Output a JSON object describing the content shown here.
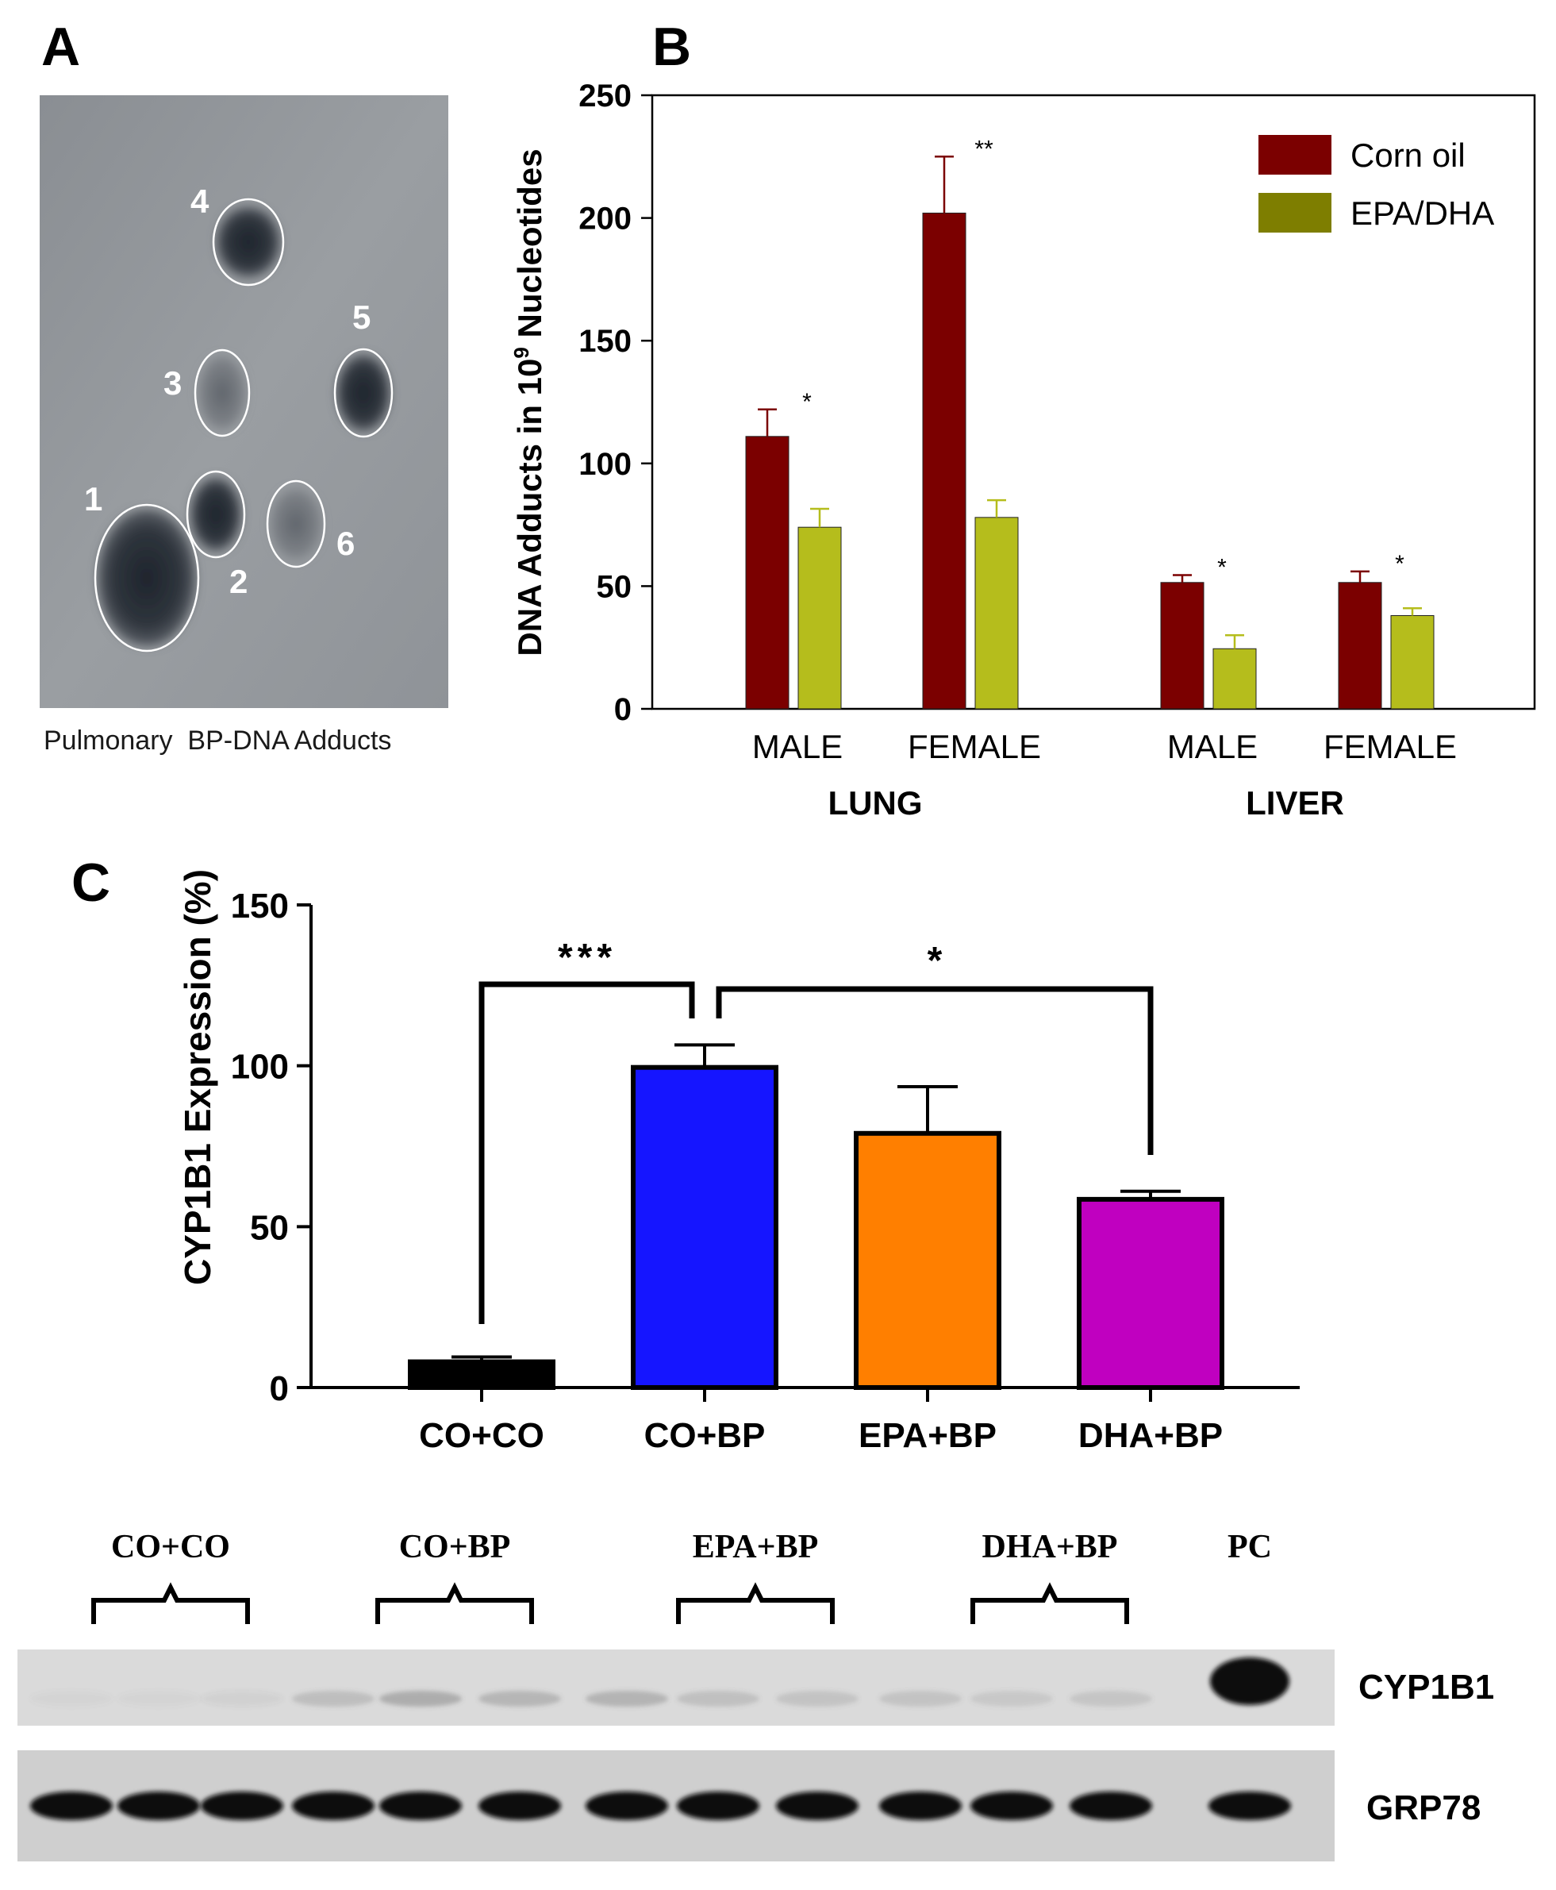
{
  "panels": {
    "a": {
      "letter": "A",
      "caption": "Pulmonary  BP-DNA Adducts",
      "spots": [
        "1",
        "2",
        "3",
        "4",
        "5",
        "6"
      ]
    },
    "b": {
      "letter": "B"
    },
    "c": {
      "letter": "C"
    },
    "blot": {
      "groups": [
        "CO+CO",
        "CO+BP",
        "EPA+BP",
        "DHA+BP"
      ],
      "pc_label": "PC",
      "rows": [
        "CYP1B1",
        "GRP78"
      ]
    }
  },
  "colors": {
    "corn_oil": "#7b0000",
    "epa_dha": "#b5bd1c",
    "legend_epa_dha": "#7e7e00",
    "co_co": "#000000",
    "co_bp": "#1515ff",
    "epa_bp": "#ff7f00",
    "dha_bp": "#c000c0"
  },
  "chart_data": [
    {
      "type": "bar",
      "title": "",
      "ylabel": "DNA Adducts in 10",
      "ylabel_sup": "9",
      "ylabel_suffix": " Nucleotides",
      "ylim": [
        0,
        250
      ],
      "yticks": [
        "0",
        "50",
        "100",
        "150",
        "200",
        "250"
      ],
      "groups": [
        {
          "tissue": "LUNG",
          "categories": [
            "MALE",
            "FEMALE"
          ]
        },
        {
          "tissue": "LIVER",
          "categories": [
            "MALE",
            "FEMALE"
          ]
        }
      ],
      "categories": [
        "MALE",
        "FEMALE",
        "MALE",
        "FEMALE"
      ],
      "series": [
        {
          "name": "Corn oil",
          "values": [
            111,
            202,
            51.5,
            51.5
          ],
          "errors": [
            11,
            23,
            3,
            4.5
          ]
        },
        {
          "name": "EPA/DHA",
          "values": [
            74,
            78,
            24.5,
            38
          ],
          "errors": [
            7.5,
            7,
            5.5,
            3
          ]
        }
      ],
      "significance": [
        "*",
        "**",
        "*",
        "*"
      ],
      "legend": [
        "Corn oil",
        "EPA/DHA"
      ]
    },
    {
      "type": "bar",
      "title": "",
      "ylabel": "CYP1B1 Expression (%)",
      "ylim": [
        0,
        150
      ],
      "yticks": [
        "0",
        "50",
        "100",
        "150"
      ],
      "categories": [
        "CO+CO",
        "CO+BP",
        "EPA+BP",
        "DHA+BP"
      ],
      "values": [
        8,
        99.5,
        79,
        58.5
      ],
      "errors": [
        1.5,
        7,
        14.5,
        2.5
      ],
      "comparisons": [
        {
          "from": "CO+CO",
          "to": "CO+BP",
          "label": "***"
        },
        {
          "from": "CO+BP",
          "to": "DHA+BP",
          "label": "*"
        }
      ]
    }
  ]
}
